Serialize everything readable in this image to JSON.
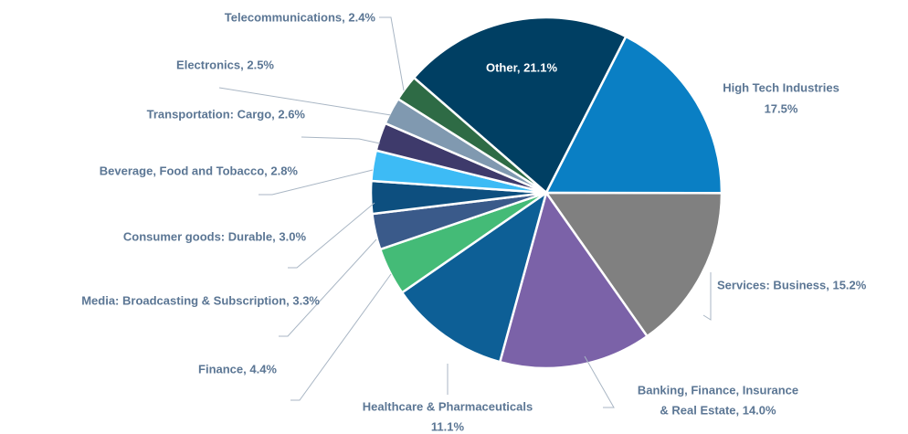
{
  "chart_data": {
    "type": "pie",
    "values": [
      21.1,
      17.5,
      15.2,
      14.0,
      11.1,
      4.4,
      3.3,
      3.0,
      2.8,
      2.6,
      2.5,
      2.4
    ],
    "value_labels": [
      [
        "Other, 21.1%"
      ],
      [
        "High Tech Industries",
        "17.5%"
      ],
      [
        "Services: Business, 15.2%"
      ],
      [
        "Banking, Finance, Insurance",
        "& Real Estate, 14.0%"
      ],
      [
        "Healthcare & Pharmaceuticals",
        "11.1%"
      ],
      [
        "Finance, 4.4%"
      ],
      [
        "Media: Broadcasting & Subscription, 3.3%"
      ],
      [
        "Consumer goods: Durable, 3.0%"
      ],
      [
        "Beverage, Food and Tobacco, 2.8%"
      ],
      [
        "Transportation: Cargo, 2.6%"
      ],
      [
        "Electronics, 2.5%"
      ],
      [
        "Telecommunications, 2.4%"
      ]
    ],
    "colors": [
      "#003f63",
      "#0a7fc4",
      "#808080",
      "#7b62a8",
      "#0d5f96",
      "#44bb77",
      "#3a5a8a",
      "#0d4f7f",
      "#3dbbf5",
      "#3e3a6b",
      "#8099b0",
      "#2e6b45"
    ]
  }
}
